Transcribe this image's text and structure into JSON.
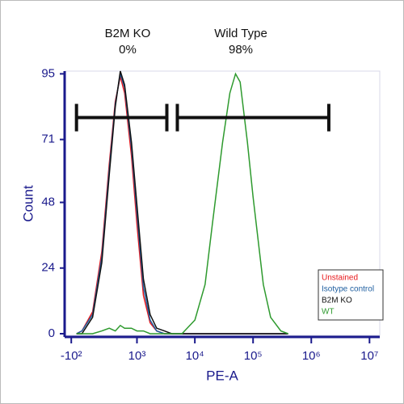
{
  "chart_data": {
    "type": "line",
    "xscale": "biexponential",
    "xlabel": "PE-A",
    "ylabel": "Count",
    "xlim": [
      -170,
      15000000
    ],
    "ylim": [
      0,
      96
    ],
    "xticks": [
      {
        "value": -100,
        "label": "-10²"
      },
      {
        "value": 1000,
        "label": "10³"
      },
      {
        "value": 10000,
        "label": "10⁴"
      },
      {
        "value": 100000,
        "label": "10⁵"
      },
      {
        "value": 1000000,
        "label": "10⁶"
      },
      {
        "value": 10000000,
        "label": "10⁷"
      }
    ],
    "yticks": [
      0,
      24,
      48,
      71,
      95
    ],
    "legend": "bottom-right",
    "x": [
      -50,
      0,
      100,
      200,
      300,
      400,
      500,
      600,
      800,
      1000,
      1300,
      1700,
      2200,
      3000,
      4000,
      6000,
      10000,
      15000,
      20000,
      30000,
      40000,
      50000,
      60000,
      80000,
      100000,
      150000,
      200000,
      300000,
      400000
    ],
    "series": [
      {
        "name": "Unstained",
        "color": "#e8191c",
        "values": [
          0,
          1,
          8,
          30,
          62,
          85,
          94,
          88,
          65,
          40,
          14,
          4,
          1,
          0,
          0,
          0,
          0,
          0,
          0,
          0,
          0,
          0,
          0,
          0,
          0,
          0,
          0,
          0,
          0
        ]
      },
      {
        "name": "Isotype control",
        "color": "#1f5fa0",
        "values": [
          0,
          1,
          7,
          28,
          60,
          84,
          95,
          90,
          68,
          44,
          17,
          5,
          1,
          0,
          0,
          0,
          0,
          0,
          0,
          0,
          0,
          0,
          0,
          0,
          0,
          0,
          0,
          0,
          0
        ]
      },
      {
        "name": "B2M KO",
        "color": "#111111",
        "values": [
          0,
          0,
          6,
          26,
          58,
          83,
          96,
          91,
          70,
          47,
          20,
          7,
          2,
          1,
          0,
          0,
          0,
          0,
          0,
          0,
          0,
          0,
          0,
          0,
          0,
          0,
          0,
          0,
          0
        ]
      },
      {
        "name": "WT",
        "color": "#2e9a2e",
        "values": [
          0,
          0,
          0,
          1,
          2,
          1,
          3,
          2,
          2,
          1,
          1,
          0,
          0,
          0,
          0,
          0,
          5,
          18,
          40,
          70,
          88,
          95,
          92,
          70,
          50,
          18,
          6,
          1,
          0
        ]
      }
    ],
    "gates": [
      {
        "label": "B2M KO",
        "value": 0,
        "value_label": "0%",
        "range": [
          -50,
          3300
        ],
        "y": 79
      },
      {
        "label": "Wild Type",
        "value": 98,
        "value_label": "98%",
        "range": [
          5000,
          2000000
        ],
        "y": 79
      }
    ]
  }
}
